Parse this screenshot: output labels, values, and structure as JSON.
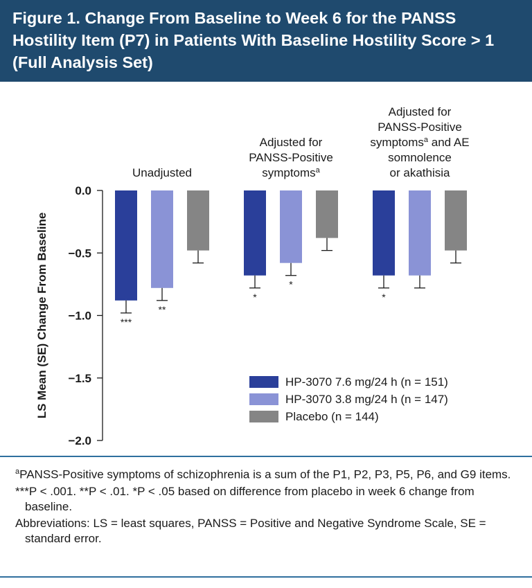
{
  "title": "Figure 1. Change From Baseline to Week 6 for the PANSS Hostility Item (P7) in Patients With Baseline Hostility Score > 1 (Full Analysis Set)",
  "colors": {
    "header_bg": "#1f4a6e",
    "rule": "#2f6f9e",
    "series": [
      "#2a3f9a",
      "#8a93d6",
      "#858585"
    ]
  },
  "chart_data": {
    "type": "bar",
    "ylabel": "LS Mean (SE) Change From Baseline",
    "ylim": [
      -2.0,
      0.0
    ],
    "yticks": [
      0.0,
      -0.5,
      -1.0,
      -1.5,
      -2.0
    ],
    "ytick_labels": [
      "0.0",
      "−0.5",
      "−1.0",
      "−1.5",
      "−2.0"
    ],
    "groups": [
      {
        "label_lines": [
          "Unadjusted"
        ],
        "superscript_line": -1
      },
      {
        "label_lines": [
          "Adjusted for",
          "PANSS-Positive",
          "symptoms"
        ],
        "superscript_line": 2
      },
      {
        "label_lines": [
          "Adjusted for",
          "PANSS-Positive",
          "symptoms",
          "and AE",
          "somnolence",
          "or akathisia"
        ],
        "superscript_line": 2
      }
    ],
    "group_label_superscript": "a",
    "series": [
      {
        "name": "HP-3070 7.6 mg/24 h (n = 151)",
        "values": [
          -0.88,
          -0.68,
          -0.68
        ],
        "se": [
          0.1,
          0.1,
          0.1
        ],
        "sig": [
          "***",
          "*",
          "*"
        ]
      },
      {
        "name": "HP-3070 3.8 mg/24 h (n = 147)",
        "values": [
          -0.78,
          -0.58,
          -0.68
        ],
        "se": [
          0.1,
          0.1,
          0.1
        ],
        "sig": [
          "**",
          "*",
          ""
        ]
      },
      {
        "name": "Placebo (n = 144)",
        "values": [
          -0.48,
          -0.38,
          -0.48
        ],
        "se": [
          0.1,
          0.1,
          0.1
        ],
        "sig": [
          "",
          "",
          ""
        ]
      }
    ],
    "grid": false,
    "legend_position": "bottom-right"
  },
  "footnotes": {
    "note_a_marker": "a",
    "note_a_text": "PANSS-Positive symptoms of schizophrenia is a sum of the P1, P2, P3, P5, P6, and G9 items.",
    "significance": "***P < .001.   **P < .01.   *P < .05 based on difference from placebo in week 6 change from baseline.",
    "abbreviations": "Abbreviations: LS = least squares, PANSS = Positive and Negative Syndrome Scale, SE = standard error."
  }
}
